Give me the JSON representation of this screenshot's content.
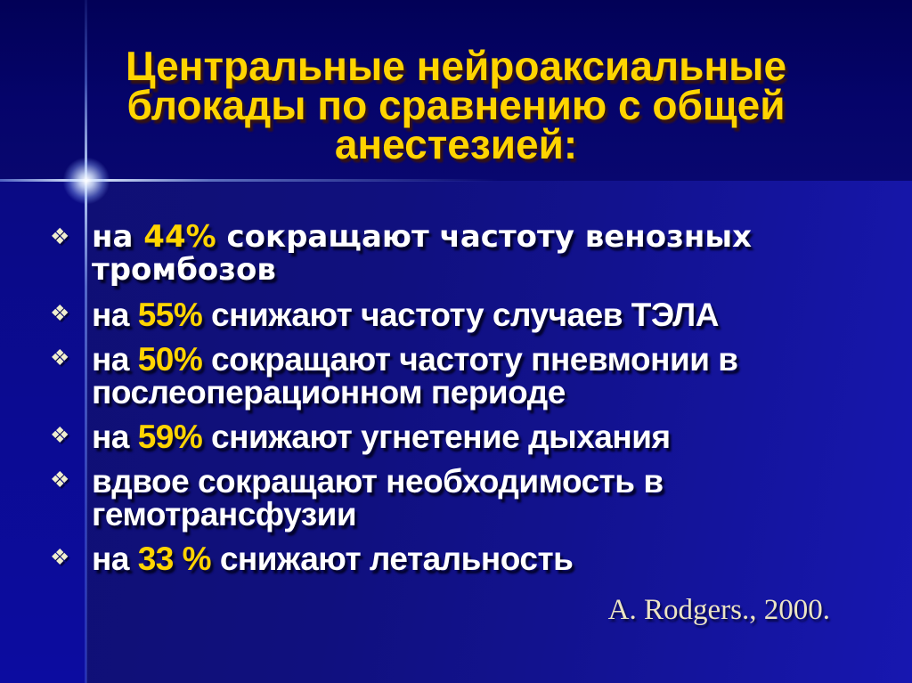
{
  "slide": {
    "title": {
      "lines": [
        "Центральные нейроаксиальные",
        "блокады по сравнению с общей",
        "анестезией:"
      ]
    },
    "bullet_glyph": "❖",
    "bullets": [
      {
        "wide": true,
        "segments": [
          {
            "t": "на "
          },
          {
            "t": "44%",
            "accent": true
          },
          {
            "t": " сокращают частоту венозных"
          },
          {
            "br": true
          },
          {
            "t": "тромбозов"
          }
        ]
      },
      {
        "wide": false,
        "segments": [
          {
            "t": "на "
          },
          {
            "t": "55%",
            "accent": true
          },
          {
            "t": " снижают частоту случаев ТЭЛА"
          }
        ]
      },
      {
        "wide": false,
        "segments": [
          {
            "t": "на "
          },
          {
            "t": "50%",
            "accent": true
          },
          {
            "t": " сокращают частоту пневмонии в"
          },
          {
            "br": true
          },
          {
            "t": "послеоперационном периоде"
          }
        ]
      },
      {
        "wide": false,
        "segments": [
          {
            "t": "на "
          },
          {
            "t": "59%",
            "accent": true
          },
          {
            "t": " снижают угнетение дыхания"
          }
        ]
      },
      {
        "wide": false,
        "segments": [
          {
            "t": "вдвое сокращают необходимость в"
          },
          {
            "br": true
          },
          {
            "t": "гемотрансфузии"
          }
        ]
      },
      {
        "wide": false,
        "segments": [
          {
            "t": "на "
          },
          {
            "t": "33 %",
            "accent": true
          },
          {
            "t": " снижают летальность"
          }
        ]
      }
    ],
    "attribution": "A. Rodgers., 2000.",
    "colors": {
      "accent": "#ffd400",
      "title": "#ffd400",
      "body": "#ffffff",
      "bullet": "#efeecf",
      "attribution": "#ece4c4"
    }
  }
}
